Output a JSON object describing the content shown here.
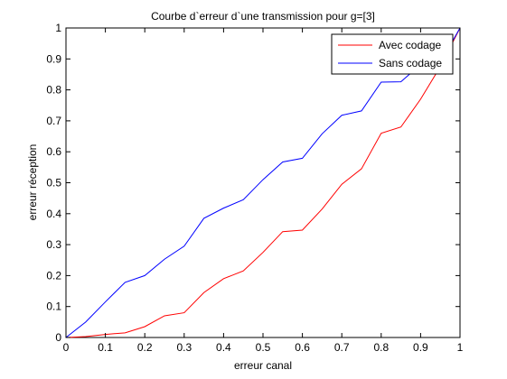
{
  "chart_data": {
    "type": "line",
    "title": "Courbe d`erreur d`une transmission pour g=[3]",
    "xlabel": "erreur canal",
    "ylabel": "erreur réception",
    "xlim": [
      0,
      1
    ],
    "ylim": [
      0,
      1
    ],
    "xticks": [
      "0",
      "0.1",
      "0.2",
      "0.3",
      "0.4",
      "0.5",
      "0.6",
      "0.7",
      "0.8",
      "0.9",
      "1"
    ],
    "yticks": [
      "0",
      "0.1",
      "0.2",
      "0.3",
      "0.4",
      "0.5",
      "0.6",
      "0.7",
      "0.8",
      "0.9",
      "1"
    ],
    "grid": false,
    "legend_position": "top-right",
    "x": [
      0,
      0.05,
      0.1,
      0.15,
      0.2,
      0.25,
      0.3,
      0.35,
      0.4,
      0.45,
      0.5,
      0.55,
      0.6,
      0.65,
      0.7,
      0.75,
      0.8,
      0.85,
      0.9,
      0.95,
      1
    ],
    "series": [
      {
        "name": "Avec codage",
        "color": "#ff0000",
        "values": [
          0,
          0.003,
          0.01,
          0.015,
          0.035,
          0.07,
          0.08,
          0.145,
          0.19,
          0.215,
          0.275,
          0.342,
          0.347,
          0.415,
          0.495,
          0.545,
          0.66,
          0.68,
          0.77,
          0.875,
          1
        ]
      },
      {
        "name": "Sans codage",
        "color": "#0000ff",
        "values": [
          0,
          0.05,
          0.115,
          0.178,
          0.2,
          0.253,
          0.295,
          0.385,
          0.418,
          0.445,
          0.51,
          0.567,
          0.579,
          0.658,
          0.718,
          0.732,
          0.825,
          0.826,
          0.882,
          0.888,
          1
        ]
      }
    ]
  }
}
